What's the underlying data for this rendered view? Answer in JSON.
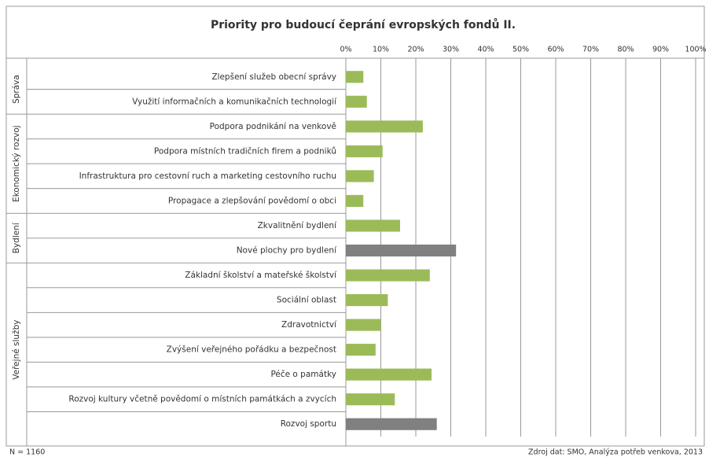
{
  "chart_data": {
    "type": "bar",
    "orientation": "horizontal",
    "title": "Priority pro budoucí čeprání evropských fondů II.",
    "groups": [
      {
        "name": "Správa",
        "categories": [
          "Zlepšení služeb obecní správy",
          "Využití informačních a komunikačních technologií"
        ],
        "values": [
          5,
          6
        ],
        "colors": [
          "#9bbb59",
          "#9bbb59"
        ]
      },
      {
        "name": "Ekonomický rozvoj",
        "categories": [
          "Podpora podnikání na venkově",
          "Podpora místních tradičních firem a podniků",
          "Infrastruktura pro cestovní ruch a marketing cestovního ruchu",
          "Propagace a zlepšování povědomí o obci"
        ],
        "values": [
          22,
          10.5,
          8,
          5
        ],
        "colors": [
          "#9bbb59",
          "#9bbb59",
          "#9bbb59",
          "#9bbb59"
        ]
      },
      {
        "name": "Bydlení",
        "categories": [
          "Zkvalitnění bydlení",
          "Nové plochy pro bydlení"
        ],
        "values": [
          15.5,
          31.5
        ],
        "colors": [
          "#9bbb59",
          "#808080"
        ]
      },
      {
        "name": "Veřejné služby",
        "categories": [
          "Základní školství a mateřské školství",
          "Sociální oblast",
          "Zdravotnictví",
          "Zvýšení veřejného pořádku a bezpečnost",
          "Péče o památky",
          "Rozvoj kultury včetně povědomí o místních památkách a zvycích",
          "Rozvoj sportu"
        ],
        "values": [
          24,
          12,
          10,
          8.5,
          24.5,
          14,
          26
        ],
        "colors": [
          "#9bbb59",
          "#9bbb59",
          "#9bbb59",
          "#9bbb59",
          "#9bbb59",
          "#9bbb59",
          "#808080"
        ]
      }
    ],
    "xlim": [
      0,
      100
    ],
    "xticks": [
      {
        "value": 0,
        "label": "0%"
      },
      {
        "value": 10,
        "label": "10%"
      },
      {
        "value": 20,
        "label": "20%"
      },
      {
        "value": 30,
        "label": "30%"
      },
      {
        "value": 40,
        "label": "40%"
      },
      {
        "value": 50,
        "label": "50%"
      },
      {
        "value": 60,
        "label": "60%"
      },
      {
        "value": 70,
        "label": "70%"
      },
      {
        "value": 80,
        "label": "80%"
      },
      {
        "value": 90,
        "label": "90%"
      },
      {
        "value": 100,
        "label": "100%"
      }
    ],
    "grid": true,
    "note_left": "N = 1160",
    "note_right": "Zdroj dat: SMO, Analýza potřeb venkova, 2013"
  }
}
